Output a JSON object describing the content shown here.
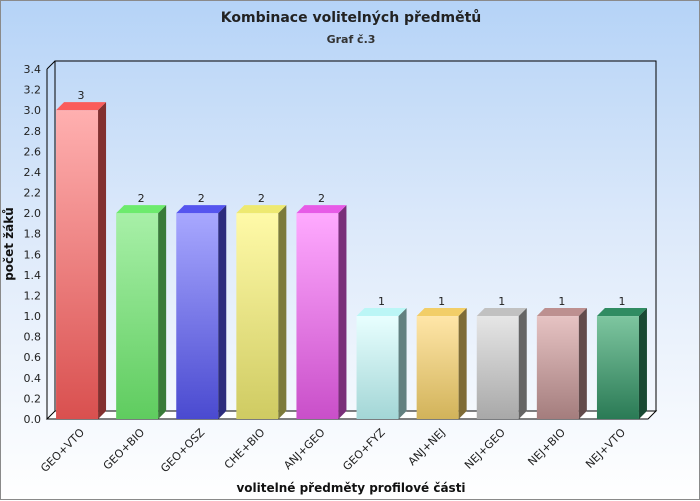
{
  "chart_data": {
    "type": "bar",
    "title": "Kombinace volitelných předmětů",
    "subtitle": "Graf č.3",
    "xlabel": "volitelné předměty profilové části",
    "ylabel": "počet žáků",
    "ylim": [
      0,
      3.4
    ],
    "yticks": [
      "0.0",
      "0.2",
      "0.4",
      "0.6",
      "0.8",
      "1.0",
      "1.2",
      "1.4",
      "1.6",
      "1.8",
      "2.0",
      "2.2",
      "2.4",
      "2.6",
      "2.8",
      "3.0",
      "3.2",
      "3.4"
    ],
    "categories": [
      "GEO+VTO",
      "GEO+BIO",
      "GEO+OSZ",
      "CHE+BIO",
      "ANJ+GEO",
      "GEO+FYZ",
      "ANJ+NEJ",
      "NEJ+GEO",
      "NEJ+BIO",
      "NEJ+VTO"
    ],
    "values": [
      3,
      2,
      2,
      2,
      2,
      1,
      1,
      1,
      1,
      1
    ],
    "colors": [
      "#d9504f",
      "#5fcc5f",
      "#4a4ad0",
      "#cfcb62",
      "#c94fc9",
      "#a3d6d6",
      "#d2b35a",
      "#a8a8a8",
      "#a47d7d",
      "#2a7a55"
    ],
    "lights": [
      "#ffb0b0",
      "#a8f0a8",
      "#a8a8ff",
      "#fffaa8",
      "#ffaaff",
      "#e8ffff",
      "#ffe6a8",
      "#e6e6e6",
      "#e6c3c3",
      "#7ec6a0"
    ],
    "grid": false
  }
}
